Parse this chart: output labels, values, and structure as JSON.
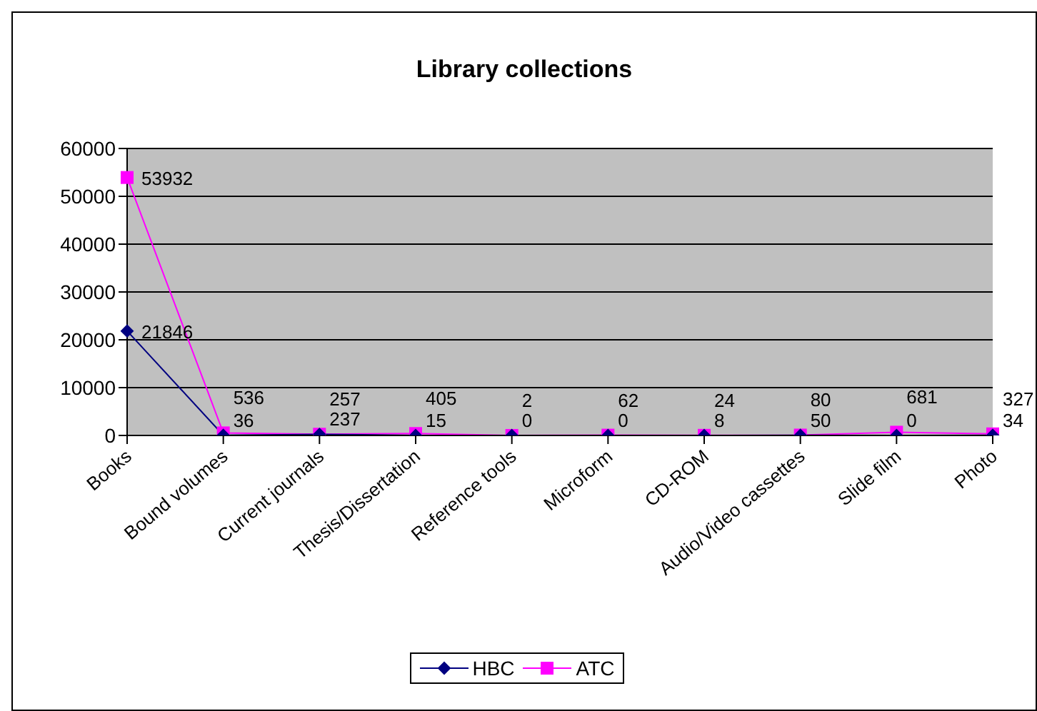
{
  "chart_data": {
    "type": "line",
    "title": "Library collections",
    "categories": [
      "Books",
      "Bound volumes",
      "Current journals",
      "Thesis/Dissertation",
      "Reference tools",
      "Microform",
      "CD-ROM",
      "Audio/Video cassettes",
      "Slide film",
      "Photo"
    ],
    "series": [
      {
        "name": "HBC",
        "color": "#000080",
        "values": [
          21846,
          36,
          237,
          15,
          0,
          0,
          8,
          50,
          0,
          34
        ],
        "marker": "diamond"
      },
      {
        "name": "ATC",
        "color": "#ff00ff",
        "values": [
          53932,
          536,
          257,
          405,
          2,
          62,
          24,
          80,
          681,
          327
        ],
        "marker": "square"
      }
    ],
    "ylim": [
      0,
      60000
    ],
    "yticks": [
      0,
      10000,
      20000,
      30000,
      40000,
      50000,
      60000
    ],
    "grid": "y",
    "legend": "bottom",
    "data_labels": true
  }
}
